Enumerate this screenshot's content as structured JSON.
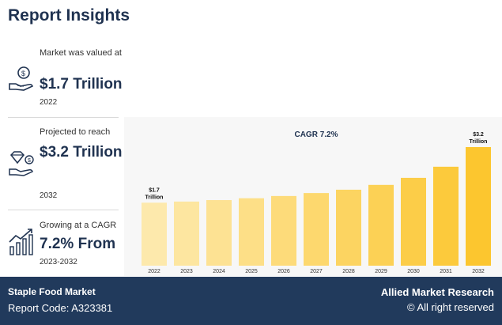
{
  "title": "Report Insights",
  "stats": [
    {
      "label": "Market was valued at",
      "value": "$1.7 Trillion",
      "sub": "2022",
      "icon": "money-hand-icon"
    },
    {
      "label": "Projected to reach",
      "value": "$3.2 Trillion",
      "sub": "2032",
      "icon": "diamond-hand-icon"
    },
    {
      "label": "Growing at a CAGR",
      "value": "7.2% From",
      "sub": "2023-2032",
      "icon": "growth-chart-icon"
    }
  ],
  "chart_data": {
    "type": "bar",
    "title": "CAGR 7.2%",
    "categories": [
      "2022",
      "2023",
      "2024",
      "2025",
      "2026",
      "2027",
      "2028",
      "2029",
      "2030",
      "2031",
      "2032"
    ],
    "values": [
      1.7,
      1.73,
      1.77,
      1.82,
      1.88,
      1.96,
      2.05,
      2.18,
      2.37,
      2.67,
      3.2
    ],
    "annotations": [
      {
        "category": "2022",
        "text": "$1.7 Trillion"
      },
      {
        "category": "2032",
        "text": "$3.2 Trillion"
      }
    ],
    "colors": {
      "start": "#fde9ac",
      "end": "#fcc62f"
    }
  },
  "footer": {
    "left_title": "Staple Food Market",
    "left_code": "Report Code: A323381",
    "right_title": "Allied Market Research",
    "right_copy": "© All right reserved"
  }
}
